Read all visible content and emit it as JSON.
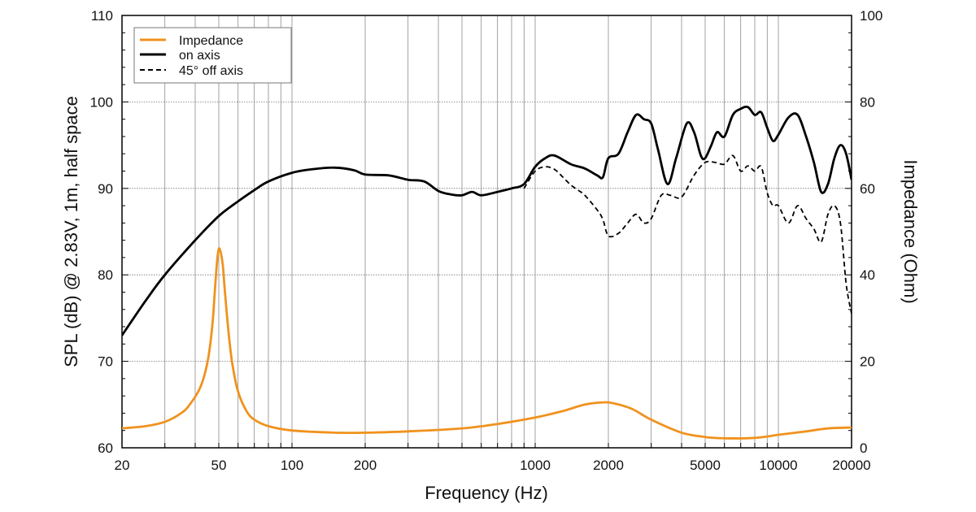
{
  "chart_data": {
    "type": "line",
    "title": "",
    "xlabel": "Frequency (Hz)",
    "ylabel": "SPL (dB) @ 2.83V, 1m, half space",
    "y2label": "Impedance (Ohm)",
    "x_scale": "log",
    "xlim": [
      20,
      20000
    ],
    "ylim": [
      60,
      110
    ],
    "y2lim": [
      0,
      100
    ],
    "x_tick_labels": [
      "20",
      "50",
      "100",
      "200",
      "1000",
      "2000",
      "5000",
      "10000",
      "20000"
    ],
    "y_tick_labels": [
      "60",
      "70",
      "80",
      "90",
      "100",
      "110"
    ],
    "y2_tick_labels": [
      "0",
      "20",
      "40",
      "60",
      "80",
      "100"
    ],
    "grid": true,
    "legend": {
      "position": "top-left",
      "entries": [
        "Impedance",
        "on axis",
        "45° off axis"
      ]
    },
    "series": [
      {
        "name": "Impedance",
        "axis": "right",
        "color": "#F0921E",
        "style": "solid",
        "x": [
          20,
          25,
          30,
          35,
          38,
          42,
          45,
          47,
          48,
          49,
          50,
          51,
          52,
          53,
          55,
          57,
          60,
          65,
          70,
          80,
          100,
          150,
          200,
          300,
          500,
          700,
          1000,
          1300,
          1600,
          1900,
          2100,
          2500,
          3000,
          4000,
          5000,
          6000,
          8000,
          10000,
          13000,
          16000,
          20000
        ],
        "values": [
          4.5,
          5.0,
          6.0,
          8.0,
          10.0,
          14.0,
          20.0,
          28.0,
          35.0,
          42.0,
          46.0,
          45.0,
          42.0,
          36.0,
          26.0,
          19.0,
          13.0,
          8.5,
          6.5,
          5.0,
          4.0,
          3.5,
          3.5,
          3.8,
          4.5,
          5.5,
          7.0,
          8.5,
          10.0,
          10.5,
          10.3,
          9.0,
          6.5,
          3.5,
          2.5,
          2.2,
          2.3,
          3.0,
          3.8,
          4.5,
          4.7
        ]
      },
      {
        "name": "on axis",
        "axis": "left",
        "color": "#000000",
        "style": "solid",
        "x": [
          20,
          25,
          30,
          40,
          50,
          60,
          70,
          80,
          100,
          120,
          150,
          180,
          200,
          250,
          300,
          350,
          400,
          450,
          500,
          550,
          600,
          700,
          800,
          900,
          1000,
          1100,
          1200,
          1400,
          1600,
          1800,
          1900,
          2000,
          2200,
          2400,
          2600,
          2800,
          3000,
          3200,
          3500,
          3800,
          4200,
          4500,
          4800,
          5000,
          5300,
          5600,
          6000,
          6500,
          7000,
          7500,
          8000,
          8500,
          9000,
          9500,
          10000,
          11000,
          12000,
          13000,
          14000,
          15000,
          16000,
          17000,
          18000,
          19000,
          20000
        ],
        "values": [
          73.0,
          77.0,
          80.0,
          84.0,
          86.8,
          88.5,
          89.8,
          90.8,
          91.8,
          92.2,
          92.4,
          92.1,
          91.6,
          91.5,
          91.0,
          90.8,
          89.7,
          89.3,
          89.2,
          89.6,
          89.2,
          89.6,
          90.0,
          90.5,
          92.5,
          93.5,
          93.8,
          92.8,
          92.3,
          91.5,
          91.3,
          93.5,
          94.0,
          96.5,
          98.5,
          98.0,
          97.5,
          94.5,
          90.5,
          93.5,
          97.5,
          96.5,
          93.8,
          93.5,
          95.0,
          96.5,
          96.0,
          98.5,
          99.2,
          99.4,
          98.5,
          98.8,
          97.0,
          95.5,
          96.2,
          98.2,
          98.5,
          96.0,
          93.0,
          89.6,
          90.5,
          93.5,
          95.0,
          94.0,
          91.0
        ]
      },
      {
        "name": "45° off axis",
        "axis": "left",
        "color": "#000000",
        "style": "dashed",
        "x": [
          900,
          1000,
          1100,
          1200,
          1300,
          1400,
          1500,
          1600,
          1800,
          1900,
          2000,
          2200,
          2400,
          2600,
          2800,
          3000,
          3300,
          3600,
          4000,
          4500,
          5000,
          5500,
          6000,
          6500,
          7000,
          7500,
          8000,
          8500,
          9000,
          9500,
          10000,
          11000,
          12000,
          13000,
          14000,
          15000,
          16000,
          17000,
          18000,
          19000,
          20000
        ],
        "values": [
          90.0,
          92.0,
          92.5,
          92.2,
          91.3,
          90.4,
          89.8,
          89.2,
          87.5,
          86.4,
          84.5,
          84.8,
          86.0,
          87.0,
          86.0,
          86.5,
          89.2,
          89.2,
          89.0,
          91.5,
          93.0,
          93.0,
          92.8,
          93.8,
          92.0,
          92.6,
          92.0,
          92.5,
          89.5,
          88.0,
          88.0,
          86.0,
          88.0,
          86.5,
          85.3,
          83.8,
          87.0,
          88.0,
          86.0,
          79.0,
          75.5
        ]
      }
    ]
  }
}
